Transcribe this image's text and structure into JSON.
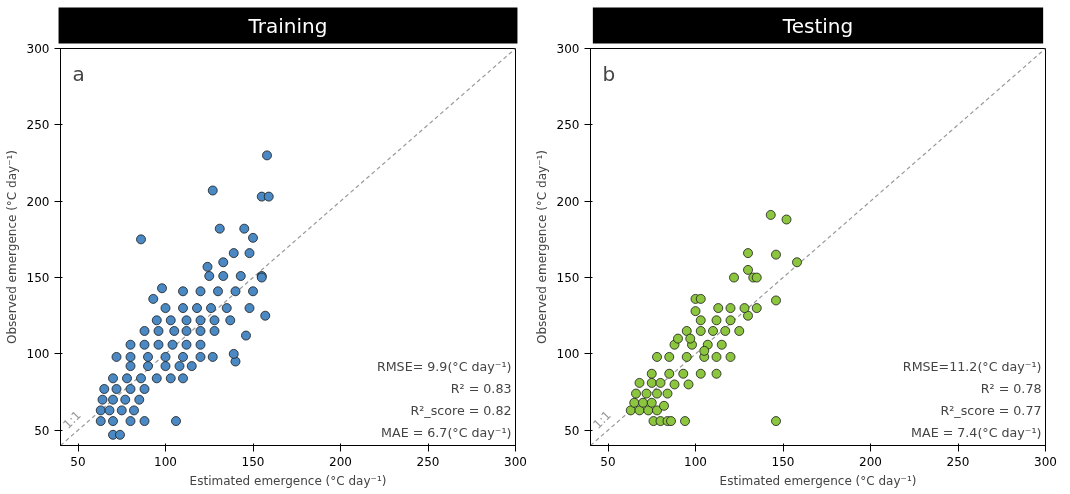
{
  "chart_data": [
    {
      "type": "scatter",
      "title": "Training",
      "xlabel": "Estimated emergence (°C day⁻¹)",
      "ylabel": "Observed emergence (°C day⁻¹)",
      "xlim": [
        40,
        300
      ],
      "ylim": [
        40,
        300
      ],
      "xticks": [
        50,
        100,
        150,
        200,
        250,
        300
      ],
      "yticks": [
        50,
        100,
        150,
        200,
        250,
        300
      ],
      "grid": false,
      "legend": false,
      "annotations": [
        "a",
        "RMSE= 9.9(°C day⁻¹)",
        "R² = 0.83",
        "R²_score = 0.82",
        "MAE = 6.7(°C day⁻¹)"
      ],
      "series": [
        {
          "type": "line",
          "name": "1:1",
          "color": "#999999",
          "line_style": "dashed",
          "x": [
            40,
            300
          ],
          "values": [
            40,
            300
          ]
        },
        {
          "marker": "circle",
          "color": "#4a89c3",
          "x": [
            70,
            74,
            63,
            70,
            80,
            88,
            106,
            63,
            68,
            75,
            82,
            64,
            70,
            77,
            85,
            65,
            72,
            80,
            88,
            70,
            78,
            86,
            95,
            103,
            110,
            80,
            90,
            100,
            108,
            115,
            72,
            80,
            90,
            100,
            110,
            120,
            127,
            140,
            80,
            88,
            96,
            104,
            112,
            120,
            88,
            96,
            105,
            112,
            120,
            128,
            146,
            95,
            103,
            112,
            120,
            128,
            137,
            100,
            110,
            118,
            126,
            135,
            148,
            110,
            120,
            130,
            140,
            150,
            125,
            133,
            143,
            155,
            86,
            98,
            93,
            157,
            139,
            124,
            133,
            139,
            148,
            131,
            145,
            127,
            155,
            159,
            158,
            150,
            155
          ],
          "values": [
            47,
            47,
            56,
            56,
            56,
            56,
            56,
            63,
            63,
            63,
            63,
            70,
            70,
            70,
            70,
            77,
            77,
            77,
            77,
            84,
            84,
            84,
            84,
            84,
            84,
            92,
            92,
            92,
            92,
            92,
            98,
            98,
            98,
            98,
            98,
            98,
            98,
            95,
            106,
            106,
            106,
            106,
            106,
            106,
            115,
            115,
            115,
            115,
            115,
            115,
            112,
            122,
            122,
            122,
            122,
            122,
            122,
            130,
            130,
            130,
            130,
            130,
            130,
            141,
            141,
            141,
            141,
            141,
            151,
            151,
            151,
            151,
            175,
            143,
            136,
            125,
            100,
            157,
            160,
            166,
            166,
            182,
            182,
            207,
            203,
            203,
            230,
            176,
            150
          ]
        }
      ]
    },
    {
      "type": "scatter",
      "title": "Testing",
      "xlabel": "Estimated emergence (°C day⁻¹)",
      "ylabel": "Observed emergence (°C day⁻¹)",
      "xlim": [
        40,
        300
      ],
      "ylim": [
        40,
        300
      ],
      "xticks": [
        50,
        100,
        150,
        200,
        250,
        300
      ],
      "yticks": [
        50,
        100,
        150,
        200,
        250,
        300
      ],
      "grid": false,
      "legend": false,
      "annotations": [
        "b",
        "RMSE=11.2(°C day⁻¹)",
        "R² = 0.78",
        "R²_score = 0.77",
        "MAE = 7.4(°C day⁻¹)"
      ],
      "series": [
        {
          "type": "line",
          "name": "1:1",
          "color": "#999999",
          "line_style": "dashed",
          "x": [
            40,
            300
          ],
          "values": [
            40,
            300
          ]
        },
        {
          "marker": "circle",
          "color": "#8cc63f",
          "x": [
            143,
            152,
            130,
            146,
            158,
            122,
            130,
            133,
            135,
            146,
            146,
            94,
            76,
            80,
            84,
            86,
            63,
            68,
            73,
            78,
            65,
            70,
            75,
            82,
            66,
            72,
            78,
            84,
            68,
            75,
            80,
            88,
            96,
            75,
            85,
            93,
            103,
            112,
            78,
            85,
            95,
            105,
            112,
            120,
            88,
            98,
            107,
            115,
            95,
            103,
            110,
            117,
            125,
            103,
            112,
            120,
            130,
            100,
            113,
            120,
            128,
            135,
            100,
            103,
            90,
            97,
            105
          ],
          "values": [
            191,
            188,
            166,
            165,
            160,
            150,
            155,
            150,
            150,
            135,
            56,
            56,
            56,
            56,
            56,
            56,
            63,
            63,
            63,
            63,
            68,
            68,
            68,
            66,
            74,
            74,
            74,
            74,
            81,
            81,
            81,
            80,
            80,
            87,
            87,
            87,
            87,
            87,
            98,
            98,
            98,
            98,
            98,
            98,
            106,
            106,
            106,
            106,
            115,
            115,
            115,
            115,
            115,
            122,
            122,
            122,
            125,
            128,
            130,
            130,
            130,
            130,
            136,
            136,
            110,
            110,
            102
          ]
        }
      ]
    }
  ]
}
